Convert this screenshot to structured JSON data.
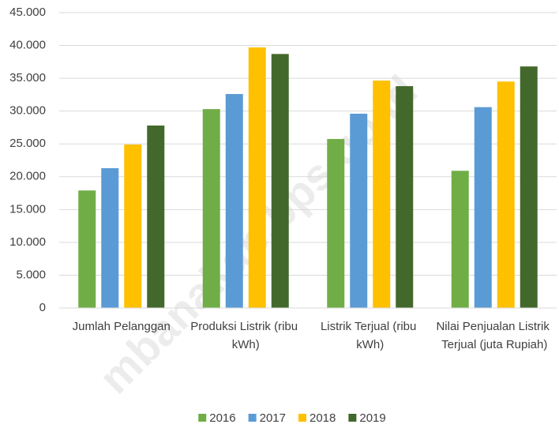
{
  "chart_data": {
    "type": "bar",
    "categories": [
      "Jumlah Pelanggan",
      "Produksi Listrik (ribu kWh)",
      "Listrik Terjual (ribu kWh)",
      "Nilai Penjualan Listrik Terjual (juta Rupiah)"
    ],
    "series": [
      {
        "name": "2016",
        "color": "#70ad47",
        "values": [
          17900,
          30300,
          25750,
          20900
        ]
      },
      {
        "name": "2017",
        "color": "#5b9bd5",
        "values": [
          21300,
          32600,
          29600,
          30600
        ]
      },
      {
        "name": "2018",
        "color": "#ffc000",
        "values": [
          24900,
          39700,
          34650,
          34500
        ]
      },
      {
        "name": "2019",
        "color": "#43682b",
        "values": [
          27800,
          38700,
          33800,
          36800
        ]
      }
    ],
    "ylim": [
      0,
      45000
    ],
    "yticks": [
      0,
      {
        "value": 5000,
        "label": "5.000"
      },
      {
        "value": 10000,
        "label": "10.000"
      },
      {
        "value": 15000,
        "label": "15.000"
      },
      {
        "value": 20000,
        "label": "20.000"
      },
      {
        "value": 25000,
        "label": "25.000"
      },
      {
        "value": 30000,
        "label": "30.000"
      },
      {
        "value": 35000,
        "label": "35.000"
      },
      {
        "value": 40000,
        "label": "40.000"
      },
      {
        "value": 45000,
        "label": "45.000"
      }
    ],
    "grid": true,
    "legend": "bottom",
    "watermark": "mbanakab.bps.go.id"
  }
}
